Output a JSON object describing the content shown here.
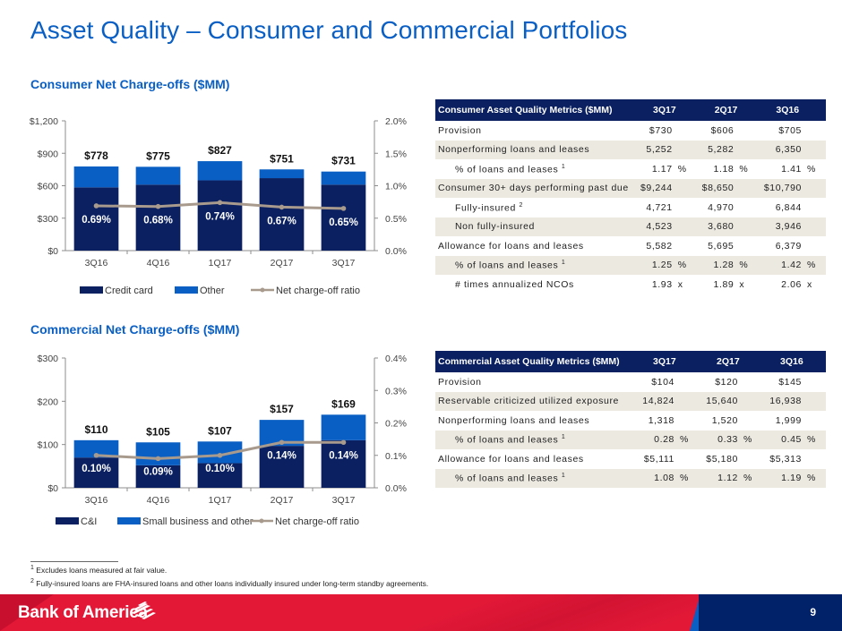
{
  "page": {
    "title": "Asset Quality – Consumer and Commercial Portfolios",
    "page_number": "9",
    "brand": "Bank of America"
  },
  "sections": {
    "consumer_title": "Consumer Net Charge-offs ($MM)",
    "commercial_title": "Commercial Net Charge-offs ($MM)"
  },
  "colors": {
    "dark_navy": "#012169",
    "bright_blue": "#0a5fc4",
    "ratio_line": "#a89a8c",
    "brand_red": "#e31837"
  },
  "chart_data": [
    {
      "type": "bar",
      "stacked": true,
      "title": "Consumer Net Charge-offs ($MM)",
      "categories": [
        "3Q16",
        "4Q16",
        "1Q17",
        "2Q17",
        "3Q17"
      ],
      "series": [
        {
          "name": "Credit card",
          "values": [
            585,
            610,
            650,
            670,
            610
          ],
          "color": "#0a2060"
        },
        {
          "name": "Other",
          "values": [
            193,
            165,
            177,
            81,
            121
          ],
          "color": "#0a5fc4"
        }
      ],
      "totals": [
        778,
        775,
        827,
        751,
        731
      ],
      "total_labels": [
        "$778",
        "$775",
        "$827",
        "$751",
        "$731"
      ],
      "line_series": {
        "name": "Net charge-off ratio",
        "values": [
          0.69,
          0.68,
          0.74,
          0.67,
          0.65
        ],
        "labels": [
          "0.69%",
          "0.68%",
          "0.74%",
          "0.67%",
          "0.65%"
        ],
        "axis": "right",
        "color": "#a89a8c"
      },
      "ylim": [
        0,
        1200
      ],
      "yticks": [
        0,
        300,
        600,
        900,
        1200
      ],
      "ytick_labels": [
        "$0",
        "$300",
        "$600",
        "$900",
        "$1,200"
      ],
      "y2lim": [
        0,
        2.0
      ],
      "y2ticks": [
        0,
        0.5,
        1.0,
        1.5,
        2.0
      ],
      "y2tick_labels": [
        "0.0%",
        "0.5%",
        "1.0%",
        "1.5%",
        "2.0%"
      ],
      "legend": [
        "Credit card",
        "Other",
        "Net charge-off ratio"
      ],
      "legend_position": "bottom",
      "grid": false
    },
    {
      "type": "bar",
      "stacked": true,
      "title": "Commercial Net Charge-offs ($MM)",
      "categories": [
        "3Q16",
        "4Q16",
        "1Q17",
        "2Q17",
        "3Q17"
      ],
      "series": [
        {
          "name": "C&I",
          "values": [
            70,
            52,
            57,
            97,
            110
          ],
          "color": "#0a2060"
        },
        {
          "name": "Small business and other",
          "values": [
            40,
            53,
            50,
            60,
            59
          ],
          "color": "#0a5fc4"
        }
      ],
      "totals": [
        110,
        105,
        107,
        157,
        169
      ],
      "total_labels": [
        "$110",
        "$105",
        "$107",
        "$157",
        "$169"
      ],
      "line_series": {
        "name": "Net charge-off ratio",
        "values": [
          0.1,
          0.09,
          0.1,
          0.14,
          0.14
        ],
        "labels": [
          "0.10%",
          "0.09%",
          "0.10%",
          "0.14%",
          "0.14%"
        ],
        "axis": "right",
        "color": "#a89a8c"
      },
      "ylim": [
        0,
        300
      ],
      "yticks": [
        0,
        100,
        200,
        300
      ],
      "ytick_labels": [
        "$0",
        "$100",
        "$200",
        "$300"
      ],
      "y2lim": [
        0,
        0.4
      ],
      "y2ticks": [
        0,
        0.1,
        0.2,
        0.3,
        0.4
      ],
      "y2tick_labels": [
        "0.0%",
        "0.1%",
        "0.2%",
        "0.3%",
        "0.4%"
      ],
      "legend": [
        "C&I",
        "Small business and other",
        "Net charge-off ratio"
      ],
      "legend_position": "bottom",
      "grid": false
    }
  ],
  "consumer_table": {
    "headers": [
      "Consumer Asset Quality Metrics ($MM)",
      "3Q17",
      "2Q17",
      "3Q16"
    ],
    "rows": [
      {
        "label": "Provision",
        "indent": false,
        "sup": "",
        "values": [
          "$730",
          "$606",
          "$705"
        ],
        "unit": ""
      },
      {
        "label": "Nonperforming loans and leases",
        "indent": false,
        "sup": "",
        "values": [
          "5,252",
          "5,282",
          "6,350"
        ],
        "unit": ""
      },
      {
        "label": "% of loans and leases",
        "indent": true,
        "sup": "1",
        "values": [
          "1.17",
          "1.18",
          "1.41"
        ],
        "unit": "%"
      },
      {
        "label": "Consumer 30+ days performing past due",
        "indent": false,
        "sup": "",
        "values": [
          "$9,244",
          "$8,650",
          "$10,790"
        ],
        "unit": ""
      },
      {
        "label": "Fully-insured",
        "indent": true,
        "sup": "2",
        "values": [
          "4,721",
          "4,970",
          "6,844"
        ],
        "unit": ""
      },
      {
        "label": "Non fully-insured",
        "indent": true,
        "sup": "",
        "values": [
          "4,523",
          "3,680",
          "3,946"
        ],
        "unit": ""
      },
      {
        "label": "Allowance for loans and leases",
        "indent": false,
        "sup": "",
        "values": [
          "5,582",
          "5,695",
          "6,379"
        ],
        "unit": ""
      },
      {
        "label": "% of loans and leases",
        "indent": true,
        "sup": "1",
        "values": [
          "1.25",
          "1.28",
          "1.42"
        ],
        "unit": "%"
      },
      {
        "label": "# times annualized NCOs",
        "indent": true,
        "sup": "",
        "values": [
          "1.93",
          "1.89",
          "2.06"
        ],
        "unit": "x"
      }
    ]
  },
  "commercial_table": {
    "headers": [
      "Commercial Asset Quality Metrics ($MM)",
      "3Q17",
      "2Q17",
      "3Q16"
    ],
    "rows": [
      {
        "label": "Provision",
        "indent": false,
        "sup": "",
        "values": [
          "$104",
          "$120",
          "$145"
        ],
        "unit": ""
      },
      {
        "label": "Reservable criticized utilized exposure",
        "indent": false,
        "sup": "",
        "values": [
          "14,824",
          "15,640",
          "16,938"
        ],
        "unit": ""
      },
      {
        "label": "Nonperforming loans and leases",
        "indent": false,
        "sup": "",
        "values": [
          "1,318",
          "1,520",
          "1,999"
        ],
        "unit": ""
      },
      {
        "label": "% of loans and leases",
        "indent": true,
        "sup": "1",
        "values": [
          "0.28",
          "0.33",
          "0.45"
        ],
        "unit": "%"
      },
      {
        "label": "Allowance for loans and leases",
        "indent": false,
        "sup": "",
        "values": [
          "$5,111",
          "$5,180",
          "$5,313"
        ],
        "unit": ""
      },
      {
        "label": "% of loans and leases",
        "indent": true,
        "sup": "1",
        "values": [
          "1.08",
          "1.12",
          "1.19"
        ],
        "unit": "%"
      }
    ]
  },
  "footnotes": {
    "note1_marker": "1",
    "note1": "Excludes loans measured at fair value.",
    "note2_marker": "2",
    "note2": "Fully-insured loans are FHA-insured loans and other loans individually insured under long-term standby agreements."
  }
}
